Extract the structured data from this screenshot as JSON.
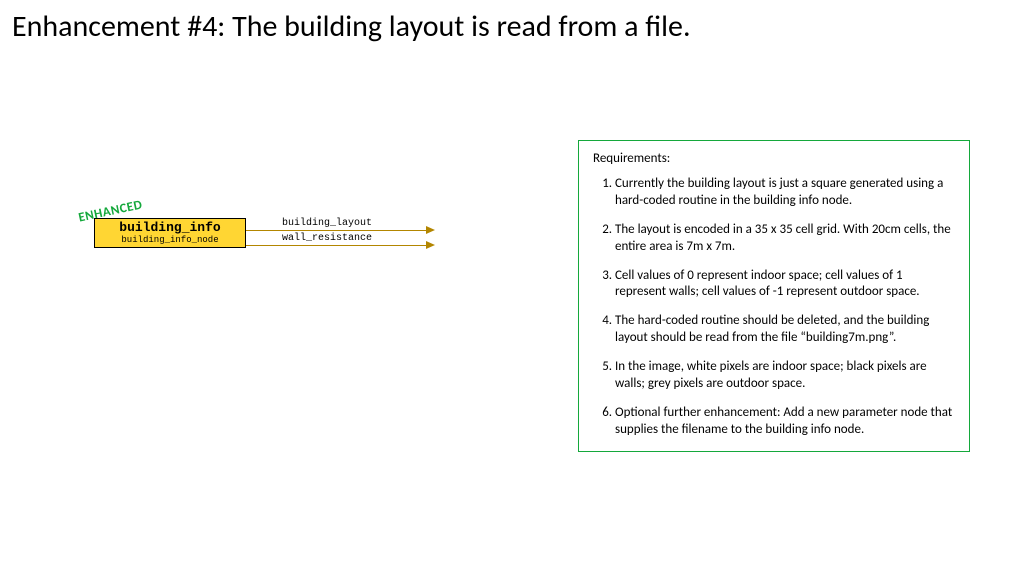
{
  "title": "Enhancement #4: The building layout is read from a file.",
  "node": {
    "enhanced_stamp": "ENHANCED",
    "name": "building_info",
    "subname": "building_info_node",
    "box_fill": "#ffd633",
    "box_border": "#000000",
    "stamp_color": "#14a83b",
    "outputs": [
      {
        "label": "building_layout"
      },
      {
        "label": "wall_resistance"
      }
    ],
    "output_line_color": "#b38600"
  },
  "requirements": {
    "heading": "Requirements:",
    "border_color": "#14a83b",
    "items": [
      "Currently the building layout is just a square generated using a hard-coded routine in the building info node.",
      "The layout is encoded in a 35 x 35 cell grid. With 20cm cells, the entire area is 7m x 7m.",
      "Cell values of 0 represent indoor space; cell values of 1 represent walls; cell values of -1 represent outdoor space.",
      "The hard-coded routine should be deleted, and the building layout should be read from the file “building7m.png”.",
      "In the image, white pixels are indoor space; black pixels are walls; grey pixels are outdoor space.",
      "Optional further enhancement: Add a new parameter node that supplies the filename to the building info node."
    ]
  }
}
